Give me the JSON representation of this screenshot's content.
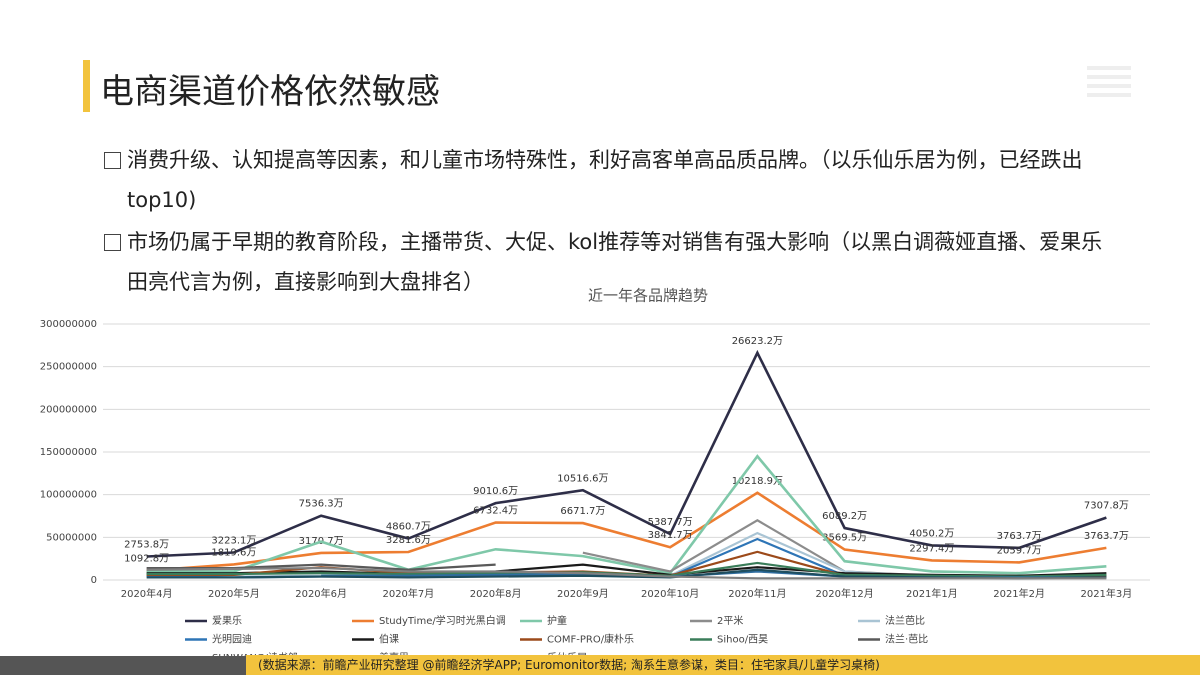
{
  "header": {
    "title": "电商渠道价格依然敏感"
  },
  "bullets": [
    "消费升级、认知提高等因素，和儿童市场特殊性，利好高客单高品质品牌。（以乐仙乐居为例，已经跌出top10)",
    "市场仍属于早期的教育阶段，主播带货、大促、kol推荐等对销售有强大影响（以黑白调薇娅直播、爱果乐田亮代言为例，直接影响到大盘排名）"
  ],
  "chart_data": {
    "type": "line",
    "title": "近一年各品牌趋势",
    "categories": [
      "2020年4月",
      "2020年5月",
      "2020年6月",
      "2020年7月",
      "2020年8月",
      "2020年9月",
      "2020年10月",
      "2020年11月",
      "2020年12月",
      "2021年1月",
      "2021年2月",
      "2021年3月"
    ],
    "ylim": [
      0,
      300000000
    ],
    "yticks": [
      0,
      50000000,
      100000000,
      150000000,
      200000000,
      250000000,
      300000000
    ],
    "grid": true,
    "series": [
      {
        "name": "爱果乐",
        "color": "#2e2e48",
        "values": [
          27538000,
          32231000,
          75363000,
          48607000,
          90106000,
          105166000,
          53877000,
          266232000,
          60892000,
          40502000,
          37637000,
          73078000
        ],
        "value_labels": [
          "2753.8万",
          "3223.1万",
          "7536.3万",
          "4860.7万",
          "9010.6万",
          "10516.6万",
          "5387.7万",
          "26623.2万",
          "6089.2万",
          "4050.2万",
          "3763.7万",
          "7307.8万"
        ]
      },
      {
        "name": "StudyTime/学习时光黑白调",
        "color": "#ed7d31",
        "values": [
          10928000,
          18196000,
          31707000,
          32816000,
          67324000,
          66717000,
          38417000,
          102189000,
          35695000,
          22974000,
          20597000,
          37637000
        ],
        "value_labels": [
          "1092.8万",
          "1819.6万",
          "3170.7万",
          "3281.6万",
          "6732.4万",
          "6671.7万",
          "3841.7万",
          "10218.9万",
          "3569.5万",
          "2297.4万",
          "2059.7万",
          "3763.7万"
        ]
      },
      {
        "name": "护童",
        "color": "#7fc8a9",
        "values": [
          10000000,
          10000000,
          45000000,
          12000000,
          36000000,
          28000000,
          8000000,
          145000000,
          22000000,
          10000000,
          8000000,
          16000000
        ]
      },
      {
        "name": "2平米",
        "color": "#8c8c8c",
        "values": [
          null,
          null,
          null,
          null,
          null,
          32000000,
          10000000,
          70000000,
          10000000,
          5000000,
          4000000,
          5000000
        ]
      },
      {
        "name": "法兰芭比",
        "color": "#a9c4d4",
        "values": [
          4000000,
          4000000,
          5000000,
          4000000,
          5000000,
          6000000,
          5000000,
          55000000,
          10000000,
          4000000,
          3000000,
          4000000
        ]
      },
      {
        "name": "光明园迪",
        "color": "#2e75b6",
        "values": [
          5000000,
          3000000,
          4000000,
          4000000,
          6000000,
          7000000,
          4000000,
          48000000,
          5000000,
          3000000,
          3000000,
          4000000
        ]
      },
      {
        "name": "伯课",
        "color": "#1a1a1a",
        "values": [
          8000000,
          8000000,
          10000000,
          7000000,
          10000000,
          18000000,
          6000000,
          15000000,
          8000000,
          6000000,
          5000000,
          8000000
        ]
      },
      {
        "name": "COMF-PRO/康朴乐",
        "color": "#9c4a1a",
        "values": [
          6000000,
          6000000,
          15000000,
          8000000,
          9000000,
          10000000,
          5000000,
          33000000,
          5000000,
          4000000,
          4000000,
          5000000
        ]
      },
      {
        "name": "Sihoo/西昊",
        "color": "#3a7d5a",
        "values": [
          7000000,
          7000000,
          8000000,
          7000000,
          8000000,
          9000000,
          5000000,
          20000000,
          6000000,
          5000000,
          4000000,
          6000000
        ]
      },
      {
        "name": "法兰·芭比",
        "color": "#595959",
        "values": [
          14000000,
          14000000,
          18000000,
          12000000,
          18000000,
          null,
          null,
          null,
          null,
          null,
          null,
          null
        ]
      },
      {
        "name": "SUNWANG/读书郎",
        "color": "#2f6da0",
        "values": [
          null,
          null,
          5000000,
          5000000,
          6000000,
          7000000,
          4000000,
          10000000,
          4000000,
          3000000,
          3000000,
          3000000
        ]
      },
      {
        "name": "美嘉思",
        "color": "#1f4e5f",
        "values": [
          3000000,
          3000000,
          4000000,
          3000000,
          4000000,
          5000000,
          3000000,
          12000000,
          4000000,
          3000000,
          2000000,
          3000000
        ]
      },
      {
        "name": "乐仙乐居",
        "color": "#7f7f7f",
        "values": [
          12000000,
          13000000,
          14000000,
          10000000,
          10000000,
          8000000,
          4000000,
          2000000,
          2000000,
          2000000,
          2000000,
          2000000
        ]
      }
    ]
  },
  "footer": {
    "source": "(数据来源：前瞻产业研究整理 @前瞻经济学APP; Euromonitor数据; 淘系生意参谋，类目：住宅家具/儿童学习桌椅)"
  }
}
